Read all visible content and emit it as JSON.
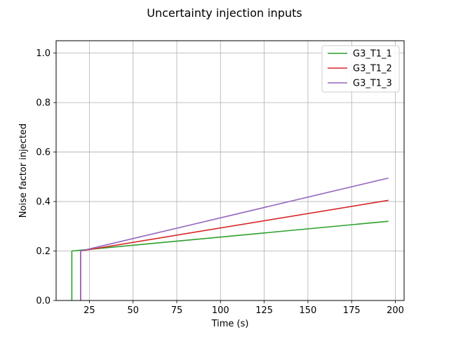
{
  "chart_data": {
    "type": "line",
    "title": "Uncertainty injection inputs",
    "xlabel": "Time (s)",
    "ylabel": "Noise factor injected",
    "xlim": [
      6,
      205
    ],
    "ylim": [
      0,
      1.05
    ],
    "xticks": [
      25,
      50,
      75,
      100,
      125,
      150,
      175,
      200
    ],
    "yticks": [
      0.0,
      0.2,
      0.4,
      0.6,
      0.8,
      1.0
    ],
    "xtick_labels": [
      "25",
      "50",
      "75",
      "100",
      "125",
      "150",
      "175",
      "200"
    ],
    "ytick_labels": [
      "0.0",
      "0.2",
      "0.4",
      "0.6",
      "0.8",
      "1.0"
    ],
    "grid": true,
    "legend": "top-right",
    "series": [
      {
        "name": "G3_T1_1",
        "color": "#2ca02c",
        "x": [
          15,
          15,
          196
        ],
        "y": [
          0,
          0.2,
          0.32
        ]
      },
      {
        "name": "G3_T1_2",
        "color": "#d62728",
        "x": [
          20,
          20,
          196
        ],
        "y": [
          0,
          0.2,
          0.405
        ]
      },
      {
        "name": "G3_T1_3",
        "color": "#9467bd",
        "x": [
          20,
          20,
          196
        ],
        "y": [
          0,
          0.2,
          0.495
        ]
      }
    ]
  }
}
